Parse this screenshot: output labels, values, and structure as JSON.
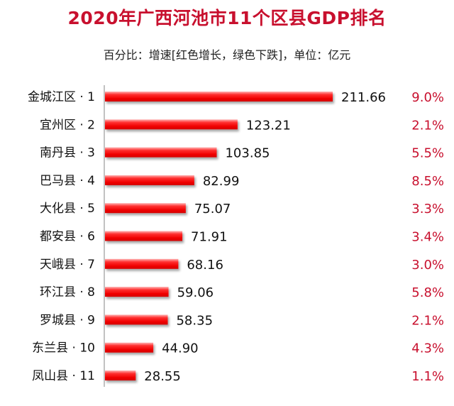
{
  "header": {
    "title": "2020年广西河池市11个区县GDP排名",
    "subtitle": "百分比：增速[红色增长，绿色下跌]，单位：亿元"
  },
  "colors": {
    "title": "#c8102e",
    "bar": "#ff1a1a",
    "growth_up": "#c8102e",
    "axis": "#9a9a9a"
  },
  "chart_data": {
    "type": "bar",
    "orientation": "horizontal",
    "title": "2020年广西河池市11个区县GDP排名",
    "subtitle": "百分比：增速[红色增长，绿色下跌]，单位：亿元",
    "categories": [
      "金城江区 · 1",
      "宜州区 · 2",
      "南丹县 · 3",
      "巴马县 · 4",
      "大化县 · 5",
      "都安县 · 6",
      "天峨县 · 7",
      "环江县 · 8",
      "罗城县 · 9",
      "东兰县 · 10",
      "凤山县 · 11"
    ],
    "values": [
      211.66,
      123.21,
      103.85,
      82.99,
      75.07,
      71.91,
      68.16,
      59.06,
      58.35,
      44.9,
      28.55
    ],
    "value_labels": [
      "211.66",
      "123.21",
      "103.85",
      "82.99",
      "75.07",
      "71.91",
      "68.16",
      "59.06",
      "58.35",
      "44.90",
      "28.55"
    ],
    "growth": [
      "9.0%",
      "2.1%",
      "5.5%",
      "8.5%",
      "3.3%",
      "3.4%",
      "3.0%",
      "5.8%",
      "2.1%",
      "4.3%",
      "1.1%"
    ],
    "xlim": [
      0,
      211.66
    ],
    "grid": false,
    "legend": "none"
  }
}
